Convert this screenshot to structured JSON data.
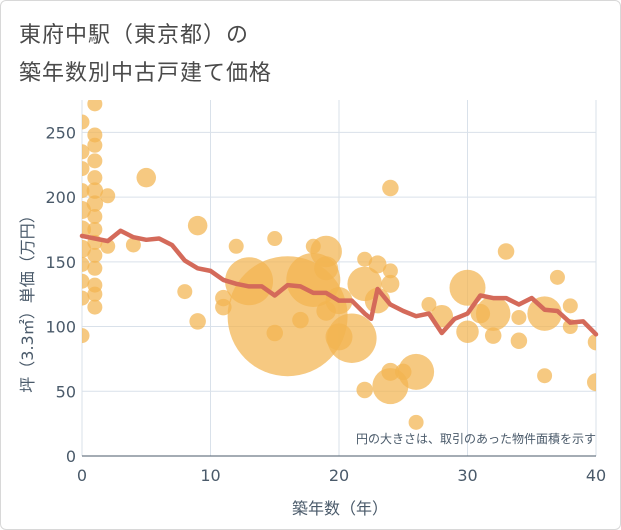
{
  "title_lines": [
    "東府中駅（東京都）の",
    "築年数別中古戸建て価格"
  ],
  "colors": {
    "bubble_fill": "#f2b450",
    "line": "#d46a5a",
    "grid": "#d9e1ea",
    "axis": "#4a5a6a"
  },
  "chart_data": {
    "type": "scatter",
    "title": "東府中駅（東京都）の築年数別中古戸建て価格",
    "xlabel": "築年数（年）",
    "ylabel": "坪（3.3㎡）単価（万円）",
    "xlim": [
      0,
      40
    ],
    "ylim": [
      0,
      275
    ],
    "x_ticks": [
      0,
      10,
      20,
      30,
      40
    ],
    "y_ticks": [
      0,
      50,
      100,
      150,
      200,
      250
    ],
    "grid": true,
    "note": "円の大きさは、取引のあった物件面積を示す",
    "series": [
      {
        "kind": "bubble",
        "points": [
          {
            "x": 0,
            "y": 258,
            "s": 1
          },
          {
            "x": 0,
            "y": 235,
            "s": 1
          },
          {
            "x": 0,
            "y": 222,
            "s": 1
          },
          {
            "x": 0,
            "y": 205,
            "s": 1
          },
          {
            "x": 0,
            "y": 190,
            "s": 1.2
          },
          {
            "x": 0,
            "y": 175,
            "s": 1.2
          },
          {
            "x": 0,
            "y": 160,
            "s": 1.2
          },
          {
            "x": 0,
            "y": 148,
            "s": 1
          },
          {
            "x": 0,
            "y": 135,
            "s": 1
          },
          {
            "x": 0,
            "y": 122,
            "s": 1
          },
          {
            "x": 0,
            "y": 93,
            "s": 1
          },
          {
            "x": 1,
            "y": 272,
            "s": 1
          },
          {
            "x": 1,
            "y": 248,
            "s": 1
          },
          {
            "x": 1,
            "y": 240,
            "s": 1
          },
          {
            "x": 1,
            "y": 228,
            "s": 1
          },
          {
            "x": 1,
            "y": 215,
            "s": 1
          },
          {
            "x": 1,
            "y": 205,
            "s": 1.1
          },
          {
            "x": 1,
            "y": 195,
            "s": 1.1
          },
          {
            "x": 1,
            "y": 185,
            "s": 1
          },
          {
            "x": 1,
            "y": 175,
            "s": 1
          },
          {
            "x": 1,
            "y": 165,
            "s": 1
          },
          {
            "x": 1,
            "y": 155,
            "s": 1
          },
          {
            "x": 1,
            "y": 145,
            "s": 1
          },
          {
            "x": 1,
            "y": 132,
            "s": 1
          },
          {
            "x": 1,
            "y": 125,
            "s": 1
          },
          {
            "x": 1,
            "y": 115,
            "s": 1
          },
          {
            "x": 2,
            "y": 201,
            "s": 1
          },
          {
            "x": 2,
            "y": 162,
            "s": 1
          },
          {
            "x": 4,
            "y": 163,
            "s": 1
          },
          {
            "x": 5,
            "y": 215,
            "s": 1.3
          },
          {
            "x": 8,
            "y": 127,
            "s": 1
          },
          {
            "x": 9,
            "y": 178,
            "s": 1.3
          },
          {
            "x": 9,
            "y": 104,
            "s": 1.1
          },
          {
            "x": 11,
            "y": 122,
            "s": 1.1
          },
          {
            "x": 11,
            "y": 115,
            "s": 1.1
          },
          {
            "x": 12,
            "y": 162,
            "s": 1
          },
          {
            "x": 13,
            "y": 135,
            "s": 3.2
          },
          {
            "x": 15,
            "y": 168,
            "s": 1
          },
          {
            "x": 15,
            "y": 95,
            "s": 1.1
          },
          {
            "x": 16,
            "y": 108,
            "s": 8
          },
          {
            "x": 17,
            "y": 105,
            "s": 1.1
          },
          {
            "x": 18,
            "y": 162,
            "s": 1
          },
          {
            "x": 18,
            "y": 136,
            "s": 3.6
          },
          {
            "x": 19,
            "y": 158,
            "s": 2.1
          },
          {
            "x": 19,
            "y": 145,
            "s": 1.6
          },
          {
            "x": 19,
            "y": 112,
            "s": 1.3
          },
          {
            "x": 20,
            "y": 120,
            "s": 1.8
          },
          {
            "x": 20,
            "y": 92,
            "s": 1.8
          },
          {
            "x": 21,
            "y": 91,
            "s": 3.3
          },
          {
            "x": 22,
            "y": 152,
            "s": 1
          },
          {
            "x": 22,
            "y": 133,
            "s": 2.3
          },
          {
            "x": 22,
            "y": 51,
            "s": 1.1
          },
          {
            "x": 23,
            "y": 148,
            "s": 1.2
          },
          {
            "x": 23,
            "y": 120,
            "s": 1.7
          },
          {
            "x": 24,
            "y": 207,
            "s": 1.1
          },
          {
            "x": 24,
            "y": 143,
            "s": 1
          },
          {
            "x": 24,
            "y": 133,
            "s": 1.2
          },
          {
            "x": 24,
            "y": 65,
            "s": 1.2
          },
          {
            "x": 24,
            "y": 54,
            "s": 2.4
          },
          {
            "x": 25,
            "y": 65,
            "s": 1.1
          },
          {
            "x": 26,
            "y": 65,
            "s": 2.4
          },
          {
            "x": 26,
            "y": 26,
            "s": 1
          },
          {
            "x": 27,
            "y": 117,
            "s": 1
          },
          {
            "x": 28,
            "y": 108,
            "s": 1.5
          },
          {
            "x": 30,
            "y": 130,
            "s": 2.4
          },
          {
            "x": 30,
            "y": 96,
            "s": 1.5
          },
          {
            "x": 31,
            "y": 110,
            "s": 1.3
          },
          {
            "x": 32,
            "y": 110,
            "s": 2.3
          },
          {
            "x": 32,
            "y": 93,
            "s": 1.1
          },
          {
            "x": 33,
            "y": 158,
            "s": 1.1
          },
          {
            "x": 34,
            "y": 107,
            "s": 1
          },
          {
            "x": 34,
            "y": 89,
            "s": 1.1
          },
          {
            "x": 36,
            "y": 110,
            "s": 2.3
          },
          {
            "x": 36,
            "y": 62,
            "s": 1
          },
          {
            "x": 37,
            "y": 138,
            "s": 1
          },
          {
            "x": 38,
            "y": 116,
            "s": 1
          },
          {
            "x": 38,
            "y": 100,
            "s": 1
          },
          {
            "x": 40,
            "y": 88,
            "s": 1.1
          },
          {
            "x": 40,
            "y": 57,
            "s": 1.2
          }
        ]
      },
      {
        "kind": "line",
        "x": [
          0,
          1,
          2,
          3,
          4,
          5,
          6,
          7,
          8,
          9,
          10,
          11,
          12,
          13,
          14,
          15,
          16,
          17,
          18,
          19,
          20,
          21,
          22,
          22.5,
          23,
          24,
          25,
          26,
          27,
          28,
          29,
          30,
          31,
          32,
          33,
          34,
          35,
          36,
          37,
          38,
          39,
          40
        ],
        "y": [
          170,
          168,
          166,
          174,
          169,
          167,
          168,
          163,
          151,
          145,
          143,
          136,
          133,
          131,
          131,
          124,
          132,
          131,
          126,
          126,
          120,
          120,
          110,
          106,
          129,
          117,
          112,
          108,
          110,
          95,
          106,
          110,
          124,
          122,
          122,
          117,
          122,
          113,
          112,
          103,
          104,
          94
        ]
      }
    ]
  }
}
